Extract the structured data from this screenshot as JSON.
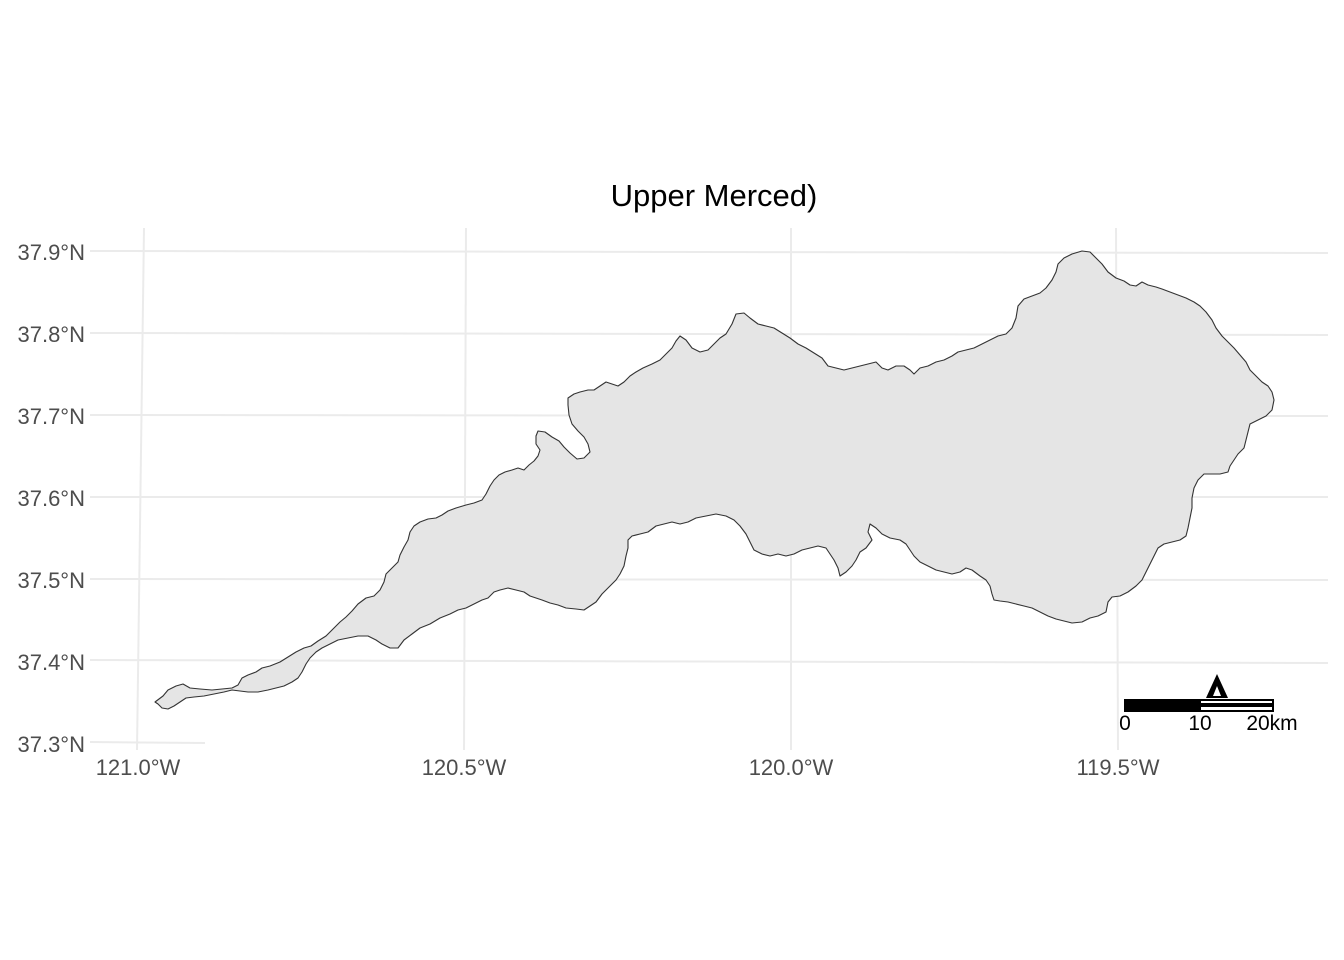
{
  "map": {
    "title": "Upper Merced)",
    "y_ticks": [
      "37.9°N",
      "37.8°N",
      "37.7°N",
      "37.6°N",
      "37.5°N",
      "37.4°N",
      "37.3°N"
    ],
    "x_ticks": [
      "121.0°W",
      "120.5°W",
      "120.0°W",
      "119.5°W"
    ],
    "scale_bar": {
      "labels": [
        "0",
        "10",
        "20km"
      ],
      "segment_colors": [
        "#000000",
        "#ffffff"
      ]
    },
    "north_arrow": {
      "icon": "north-arrow-icon"
    },
    "colors": {
      "watershed_fill": "#e5e5e5",
      "watershed_stroke": "#333333",
      "grid": "#ebebeb",
      "tick_text": "#4d4d4d"
    },
    "background": "#ffffff"
  }
}
